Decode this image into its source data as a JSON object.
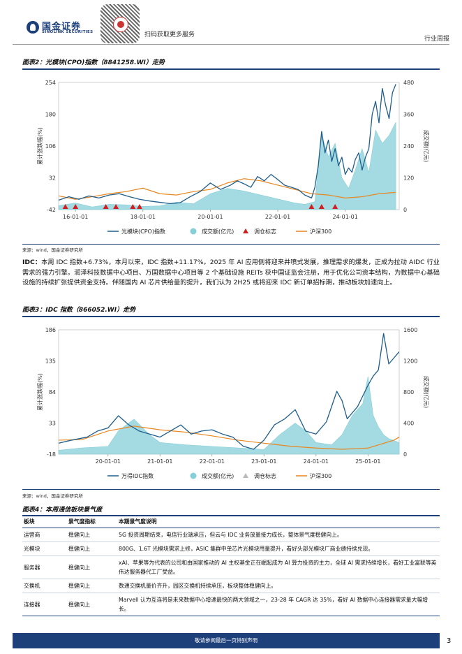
{
  "header": {
    "logo_cn": "国金证券",
    "logo_en": "SINOLINK SECURITIES",
    "scan_text": "扫码获取更多服务",
    "report_type": "行业周报"
  },
  "figure2": {
    "title": "图表2：光模块(CPO)指数（8841258.WI）走势",
    "source": "来源：wind，国金证券研究所"
  },
  "paragraph": {
    "label": "IDC：",
    "text": "本周 IDC 指数+6.73%，本月以来，IDC 指数+11.17%。2025 年 AI 应用侧将迎来井喷式发展，推理需求的爆发，正成为拉动 AIDC 行业需求的强力引擎。润泽科技数据中心项目、万国数据中心项目等 2 个基础设施 REITs 获中国证监会注册，用于优化公司资本结构，为数据中心基础设施的持续扩张提供资金支持。伴随国内 AI 芯片供给量的提升，我们认为 2H25 或将迎来 IDC 新订单招标期，推动板块加速向上。"
  },
  "figure3": {
    "title": "图表3：IDC 指数（866052.WI）走势",
    "source": "来源：wind，国金证券研究所"
  },
  "figure4": {
    "title": "图表4：本周通信板块景气度",
    "columns": [
      "板块",
      "景气度指标",
      "本期景气度说明"
    ],
    "rows": [
      {
        "sector": "运营商",
        "indicator": "稳健向上",
        "desc": "5G 投资周期结束，电信行业端承压，但云与 IDC 业务放量接力成长，整体景气度稳健向上。"
      },
      {
        "sector": "光模块",
        "indicator": "稳健向上",
        "desc": "800G、1.6T 光模块需求上修，ASIC 集群中单芯片光模块用量提升，看好头部光模块厂商业绩持续兑现。"
      },
      {
        "sector": "服务器",
        "indicator": "稳健向上",
        "desc": "xAI、苹果等为代表的公司和由国家推动的 AI 主权基金正在崛起成为 AI 算力投资的主力，全球 AI 需求持续增长，看好工业富联等英伟达服务器代工厂受益。"
      },
      {
        "sector": "交换机",
        "indicator": "稳健向上",
        "desc": "数通交换机量价齐升，园区交换机持续承压，板块整体稳健向上。"
      },
      {
        "sector": "连接器",
        "indicator": "稳健向上",
        "desc": "Marvell 认为互连将是未来数据中心增速最快的两大领域之一，23-28 年 CAGR 达 35%，看好 AI 数据中心连接器需求量大幅增长。"
      }
    ]
  },
  "footer": {
    "disclaimer": "敬请参阅最后一页特别声明",
    "page": "3"
  },
  "chart_data": [
    {
      "type": "line",
      "title": "光模块(CPO)指数（8841258.WI）走势",
      "ylabel": "累计涨跌幅(%)",
      "y2label": "成交额(亿元)",
      "ylim": [
        -42,
        254
      ],
      "y_ticks": [
        -42,
        32,
        106,
        180,
        254
      ],
      "y2lim": [
        0,
        480
      ],
      "y2_ticks": [
        0,
        120,
        240,
        360,
        480
      ],
      "x_ticks": [
        "16-01-01",
        "18-01-01",
        "20-01-01",
        "22-01-01",
        "24-01-01"
      ],
      "x_tick_pos": [
        0.5,
        2.5,
        4.5,
        6.5,
        8.5
      ],
      "xlim": [
        0,
        10.1
      ],
      "legend": [
        "光模块(CPO)指数",
        "成交额(亿元)",
        "调仓标志",
        "沪深300"
      ],
      "colors": {
        "index": "#1f5e8c",
        "volume": "#86cfd8",
        "marker": "#d11f1f",
        "csi300": "#e8861f"
      },
      "series": [
        {
          "name": "光模块(CPO)指数",
          "x": [
            0,
            0.3,
            0.6,
            0.9,
            1.2,
            1.5,
            1.8,
            2.1,
            2.4,
            2.7,
            3.0,
            3.3,
            3.6,
            3.9,
            4.2,
            4.5,
            4.8,
            5.1,
            5.3,
            5.5,
            5.7,
            5.9,
            6.1,
            6.3,
            6.5,
            6.7,
            6.9,
            7.1,
            7.3,
            7.5,
            7.6,
            7.7,
            7.8,
            7.9,
            8.0,
            8.1,
            8.2,
            8.3,
            8.4,
            8.5,
            8.6,
            8.7,
            8.8,
            8.9,
            9.0,
            9.1,
            9.2,
            9.3,
            9.4,
            9.5,
            9.6,
            9.7,
            9.8,
            9.9,
            10.0
          ],
          "values": [
            -20,
            -12,
            -18,
            -10,
            -15,
            -8,
            -5,
            -12,
            -18,
            -22,
            -25,
            -28,
            -26,
            -12,
            0,
            20,
            5,
            15,
            25,
            18,
            10,
            35,
            25,
            40,
            28,
            15,
            10,
            5,
            -8,
            -15,
            10,
            60,
            140,
            90,
            120,
            70,
            100,
            60,
            80,
            40,
            55,
            45,
            75,
            90,
            50,
            80,
            100,
            180,
            210,
            160,
            240,
            200,
            170,
            230,
            250
          ]
        },
        {
          "name": "沪深300",
          "x": [
            0,
            0.5,
            1.0,
            1.5,
            2.0,
            2.5,
            3.0,
            3.5,
            4.0,
            4.5,
            5.0,
            5.5,
            6.0,
            6.5,
            7.0,
            7.5,
            8.0,
            8.5,
            9.0,
            9.5,
            10.0
          ],
          "values": [
            -10,
            -18,
            -12,
            -5,
            0,
            8,
            -5,
            -8,
            0,
            5,
            20,
            30,
            25,
            15,
            5,
            -5,
            -8,
            -15,
            -12,
            -5,
            -2
          ]
        },
        {
          "name": "成交额(亿元)",
          "x": [
            0,
            0.5,
            1.0,
            1.5,
            2.0,
            2.5,
            3.0,
            3.5,
            4.0,
            4.5,
            5.0,
            5.5,
            6.0,
            6.5,
            7.0,
            7.3,
            7.6,
            7.8,
            8.0,
            8.2,
            8.4,
            8.6,
            8.8,
            9.0,
            9.2,
            9.4,
            9.6,
            9.8,
            10.0
          ],
          "values": [
            15,
            25,
            10,
            20,
            18,
            12,
            14,
            28,
            22,
            60,
            80,
            70,
            55,
            40,
            25,
            20,
            30,
            280,
            200,
            250,
            120,
            80,
            150,
            230,
            140,
            300,
            250,
            280,
            330
          ]
        },
        {
          "name": "调仓标志",
          "x": [
            0.2,
            0.5,
            1.4,
            1.7,
            2.2,
            2.4,
            7.5,
            7.8,
            8.2
          ],
          "values": [
            -42,
            -42,
            -42,
            -42,
            -42,
            -42,
            -42,
            -42,
            -42
          ]
        }
      ]
    },
    {
      "type": "line",
      "title": "IDC 指数（866052.WI）走势",
      "ylabel": "累计涨跌幅(%)",
      "y2label": "成交额(亿元)",
      "ylim": [
        -18,
        186
      ],
      "y_ticks": [
        -18,
        33,
        84,
        135,
        186
      ],
      "y2lim": [
        0,
        1600
      ],
      "y2_ticks": [
        0,
        400,
        800,
        1200,
        1600
      ],
      "x_ticks": [
        "20-01-01",
        "21-01-01",
        "22-01-01",
        "23-01-01",
        "24-01-01",
        "25-01-01"
      ],
      "x_tick_pos": [
        1,
        2,
        3,
        4,
        5,
        6
      ],
      "xlim": [
        0.05,
        6.6
      ],
      "legend": [
        "万得IDC指数",
        "成交额(亿元)",
        "调仓标志",
        "沪深300"
      ],
      "colors": {
        "index": "#1f5e8c",
        "volume": "#86cfd8",
        "marker": "#bbbbbb",
        "csi300": "#e8861f"
      },
      "series": [
        {
          "name": "万得IDC指数",
          "x": [
            0.05,
            0.3,
            0.6,
            0.8,
            1.0,
            1.2,
            1.4,
            1.6,
            1.8,
            2.0,
            2.2,
            2.4,
            2.6,
            2.8,
            3.0,
            3.2,
            3.4,
            3.6,
            3.8,
            4.0,
            4.2,
            4.4,
            4.6,
            4.8,
            5.0,
            5.2,
            5.4,
            5.5,
            5.6,
            5.8,
            6.0,
            6.1,
            6.2,
            6.3,
            6.4,
            6.5,
            6.6
          ],
          "values": [
            0,
            5,
            10,
            20,
            25,
            45,
            30,
            20,
            15,
            10,
            20,
            30,
            15,
            20,
            22,
            15,
            10,
            -5,
            -10,
            5,
            30,
            40,
            55,
            20,
            15,
            35,
            85,
            70,
            40,
            60,
            95,
            110,
            120,
            180,
            130,
            140,
            150
          ]
        },
        {
          "name": "沪深300",
          "x": [
            0.05,
            0.5,
            1.0,
            1.5,
            2.0,
            2.5,
            3.0,
            3.5,
            4.0,
            4.5,
            5.0,
            5.5,
            6.0,
            6.5,
            6.6
          ],
          "values": [
            5,
            6,
            20,
            28,
            22,
            18,
            12,
            5,
            0,
            -5,
            -8,
            -10,
            -8,
            5,
            10
          ]
        },
        {
          "name": "成交额(亿元)",
          "x": [
            0.05,
            0.5,
            1.0,
            1.2,
            1.5,
            1.8,
            2.0,
            2.5,
            3.0,
            3.5,
            4.0,
            4.3,
            4.6,
            4.8,
            5.0,
            5.3,
            5.5,
            5.7,
            5.9,
            6.0,
            6.1,
            6.2,
            6.3,
            6.4,
            6.6
          ],
          "values": [
            50,
            80,
            100,
            300,
            450,
            250,
            150,
            120,
            100,
            80,
            60,
            250,
            400,
            300,
            150,
            120,
            250,
            500,
            650,
            1000,
            500,
            350,
            250,
            200,
            150
          ]
        }
      ]
    }
  ]
}
